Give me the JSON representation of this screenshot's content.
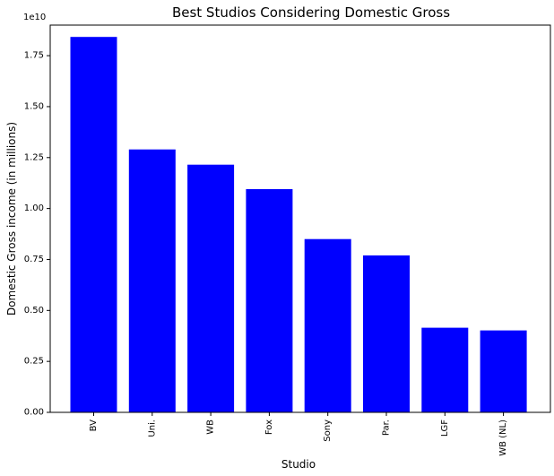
{
  "chart_data": {
    "type": "bar",
    "title": "Best Studios Considering Domestic Gross",
    "xlabel": "Studio",
    "ylabel": "Domestic Gross income (in millions)",
    "y_offset_label": "1e10",
    "categories": [
      "BV",
      "Uni.",
      "WB",
      "Fox",
      "Sony",
      "Par.",
      "LGF",
      "WB (NL)"
    ],
    "values": [
      18420000000,
      12900000000,
      12150000000,
      10950000000,
      8500000000,
      7700000000,
      4150000000,
      4020000000
    ],
    "ylim": [
      0,
      19000000000
    ],
    "yticks": [
      0,
      2500000000,
      5000000000,
      7500000000,
      10000000000,
      12500000000,
      15000000000,
      17500000000
    ],
    "ytick_labels": [
      "0.00",
      "0.25",
      "0.50",
      "0.75",
      "1.00",
      "1.25",
      "1.50",
      "1.75"
    ],
    "bar_color": "#0000ff",
    "grid": false,
    "legend": "none"
  }
}
